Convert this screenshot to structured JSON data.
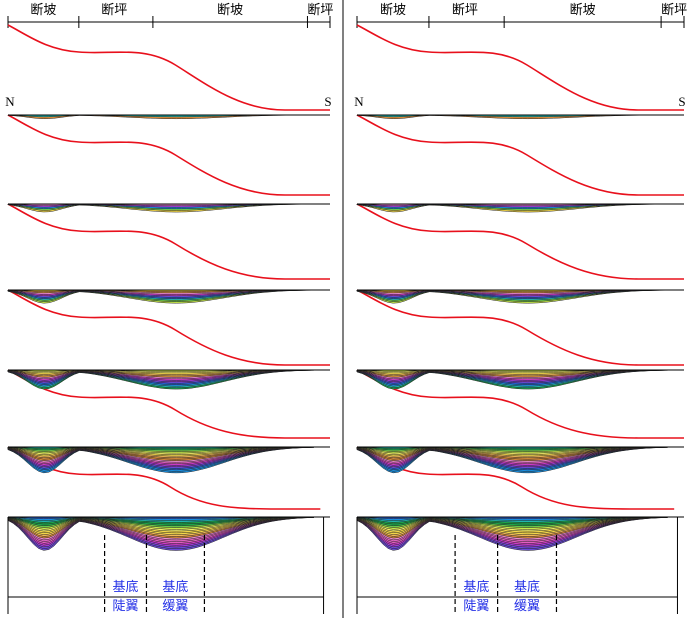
{
  "panels": [
    {
      "id": "left",
      "header_segments": [
        "断坡",
        "断坪",
        "断坡",
        "断坪"
      ],
      "north_label": "N",
      "south_label": "S",
      "zone_labels": {
        "steep_wing": [
          "基底",
          "陡翼"
        ],
        "gentle_wing": [
          "基底",
          "缓翼"
        ]
      }
    },
    {
      "id": "right",
      "header_segments": [
        "断坡",
        "断坪",
        "断坡",
        "断坪"
      ],
      "north_label": "N",
      "south_label": "S",
      "zone_labels": {
        "steep_wing": [
          "基底",
          "陡翼"
        ],
        "gentle_wing": [
          "基底",
          "缓翼"
        ]
      }
    }
  ],
  "stages": [
    {
      "layers": 2,
      "palette": "orange"
    },
    {
      "layers": 5,
      "palette": "yellow"
    },
    {
      "layers": 9,
      "palette": "green"
    },
    {
      "layers": 13,
      "palette": "blue"
    },
    {
      "layers": 17,
      "palette": "purple"
    },
    {
      "layers": 19,
      "palette": "full"
    }
  ],
  "colors": {
    "fault": "#e8101c",
    "ground_line": "#000000",
    "layer_outline": "#222222",
    "zone_label": "#2430e6",
    "palette": [
      "#d98a3a",
      "#f2b85a",
      "#f5d84a",
      "#f2ee6a",
      "#c8e84a",
      "#6cc84a",
      "#1aa84a",
      "#20b8b0",
      "#1a8fe0",
      "#2a5fd8",
      "#6a4ad8",
      "#a23ad8",
      "#d03ac8",
      "#e060c0",
      "#ea8ad0"
    ]
  }
}
